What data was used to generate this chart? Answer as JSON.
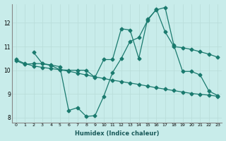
{
  "xlabel": "Humidex (Indice chaleur)",
  "bg_color": "#c8ecea",
  "line_color": "#1a7a6e",
  "grid_color": "#b8dcd8",
  "line1_x": [
    0,
    1,
    2,
    3,
    4,
    5,
    6,
    7,
    8,
    9,
    10,
    11,
    12,
    13,
    14,
    15,
    16,
    17,
    18,
    19,
    20,
    21,
    22,
    23
  ],
  "line1_y": [
    10.45,
    10.28,
    10.18,
    10.12,
    10.07,
    10.02,
    9.96,
    9.88,
    9.8,
    9.72,
    9.65,
    9.58,
    9.52,
    9.46,
    9.4,
    9.33,
    9.26,
    9.2,
    9.14,
    9.08,
    9.02,
    8.98,
    8.95,
    8.9
  ],
  "line2_x": [
    0,
    1,
    2,
    3,
    4,
    5,
    6,
    7,
    8,
    9,
    10,
    11,
    12,
    13,
    14,
    15,
    16,
    17,
    18,
    19,
    20,
    21,
    22,
    23
  ],
  "line2_y": [
    10.4,
    10.25,
    10.28,
    10.28,
    10.2,
    10.02,
    10.0,
    10.0,
    10.0,
    9.7,
    10.45,
    10.45,
    11.75,
    11.7,
    10.5,
    12.15,
    12.55,
    12.65,
    11.05,
    9.95,
    9.95,
    9.8,
    9.12,
    8.93
  ],
  "line3_x": [
    2,
    3,
    4,
    5,
    6,
    7,
    8,
    9,
    10,
    11,
    12,
    13,
    14,
    15,
    16,
    17,
    18,
    19,
    20,
    21,
    22,
    23
  ],
  "line3_y": [
    10.75,
    10.28,
    10.22,
    10.15,
    8.3,
    8.42,
    8.05,
    8.08,
    8.9,
    9.9,
    10.5,
    11.22,
    11.38,
    12.1,
    12.58,
    11.62,
    11.0,
    10.95,
    10.88,
    10.78,
    10.68,
    10.55
  ],
  "xlim": [
    -0.5,
    23.5
  ],
  "ylim": [
    7.8,
    12.8
  ],
  "yticks": [
    8,
    9,
    10,
    11,
    12
  ],
  "xticks": [
    0,
    1,
    2,
    3,
    4,
    5,
    6,
    7,
    8,
    9,
    10,
    11,
    12,
    13,
    14,
    15,
    16,
    17,
    18,
    19,
    20,
    21,
    22,
    23
  ]
}
